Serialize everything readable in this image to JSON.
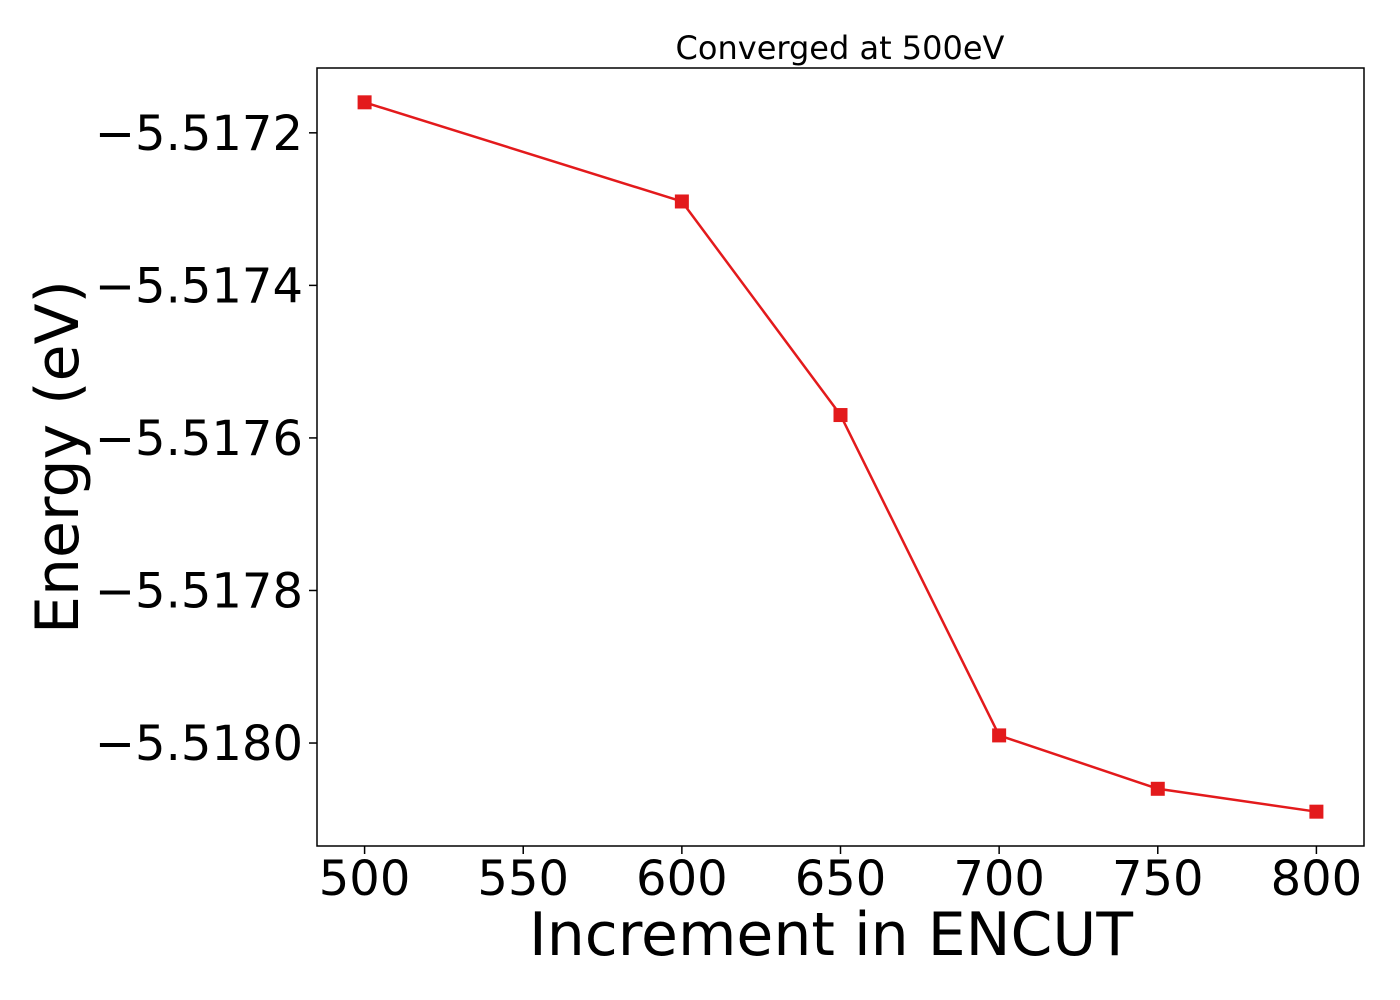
{
  "chart_data": {
    "type": "line",
    "title": "Converged at 500eV",
    "xlabel": "Increment in ENCUT",
    "ylabel": "Energy (eV)",
    "x": [
      500,
      600,
      650,
      700,
      750,
      800
    ],
    "series": [
      {
        "values": [
          -5.51716,
          -5.51729,
          -5.51757,
          -5.51799,
          -5.51806,
          -5.51809
        ]
      }
    ],
    "xticks": [
      500,
      550,
      600,
      650,
      700,
      750,
      800
    ],
    "xtick_labels": [
      "500",
      "550",
      "600",
      "650",
      "700",
      "750",
      "800"
    ],
    "yticks": [
      -5.5172,
      -5.5174,
      -5.5176,
      -5.5178,
      -5.518
    ],
    "ytick_labels": [
      "−5.5172",
      "−5.5174",
      "−5.5176",
      "−5.5178",
      "−5.5180"
    ],
    "xlim": [
      485,
      815
    ],
    "ylim": [
      -5.518135,
      -5.517115
    ],
    "grid": false,
    "legend": "none",
    "line_color": "#e31a1c",
    "marker": "square"
  }
}
